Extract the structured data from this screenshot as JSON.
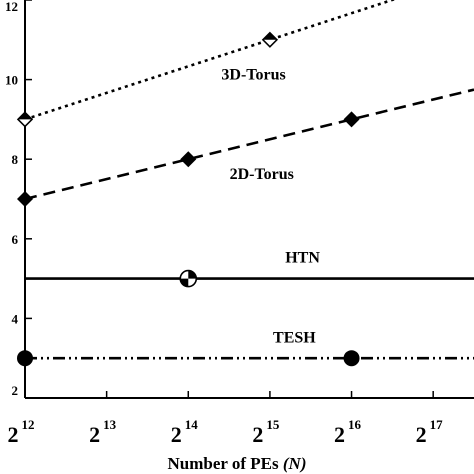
{
  "chart_data": {
    "type": "line",
    "xlabel": "Number of PEs",
    "xlabel_var": "(N)",
    "x_tick_base": "2",
    "x_ticks": [
      12,
      13,
      14,
      15,
      16,
      17
    ],
    "y_ticks": [
      2,
      4,
      6,
      8,
      10,
      12
    ],
    "xlim": [
      12,
      17.5
    ],
    "ylim": [
      2,
      12
    ],
    "grid": false,
    "series": [
      {
        "name": "3D-Torus",
        "style": "dotted",
        "marker": "half-diamond",
        "x": [
          12,
          15,
          17.5
        ],
        "y": [
          9,
          11,
          12.67
        ],
        "marker_x": [
          12,
          15
        ],
        "marker_y": [
          9,
          11
        ]
      },
      {
        "name": "2D-Torus",
        "style": "dashed",
        "marker": "diamond",
        "x": [
          12,
          14,
          16,
          17.5
        ],
        "y": [
          7,
          8,
          9,
          9.75
        ],
        "marker_x": [
          12,
          14,
          16
        ],
        "marker_y": [
          7,
          8,
          9
        ]
      },
      {
        "name": "HTN",
        "style": "solid",
        "marker": "quarter-circle",
        "x": [
          12,
          17.5
        ],
        "y": [
          5,
          5
        ],
        "marker_x": [
          14
        ],
        "marker_y": [
          5
        ]
      },
      {
        "name": "TESH",
        "style": "dash-dot-dot",
        "marker": "circle",
        "x": [
          12,
          17.5
        ],
        "y": [
          3,
          3
        ],
        "marker_x": [
          12,
          16
        ],
        "marker_y": [
          3,
          3
        ]
      }
    ],
    "annotations": [
      {
        "text": "3D-Torus",
        "x": 14.8,
        "y": 10.0
      },
      {
        "text": "2D-Torus",
        "x": 14.9,
        "y": 7.5
      },
      {
        "text": "HTN",
        "x": 15.4,
        "y": 5.4
      },
      {
        "text": "TESH",
        "x": 15.3,
        "y": 3.4
      }
    ]
  }
}
